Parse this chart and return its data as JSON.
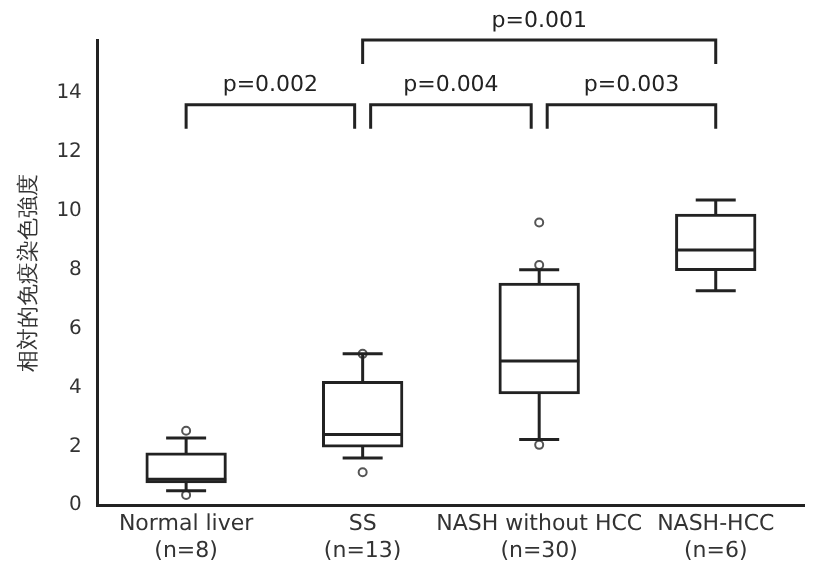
{
  "chart_data": {
    "type": "box",
    "ylabel": "相対的免疫染色強度",
    "categories": [
      "Normal liver\n(n=8)",
      "SS\n(n=13)",
      "NASH without HCC\n(n=30)",
      "NASH-HCC\n(n=6)"
    ],
    "color": "#222222",
    "boxes": [
      {
        "low": 0.49,
        "q1": 0.77,
        "median": 0.88,
        "q3": 1.77,
        "high": 2.28,
        "outliers": [
          2.53,
          0.35
        ]
      },
      {
        "low": 1.6,
        "q1": 1.98,
        "median": 2.4,
        "q3": 4.2,
        "high": 5.14,
        "outliers": [
          5.14,
          1.12
        ]
      },
      {
        "low": 2.23,
        "q1": 3.79,
        "median": 4.9,
        "q3": 7.53,
        "high": 8.0,
        "outliers": [
          9.6,
          8.16,
          2.05
        ]
      },
      {
        "low": 7.28,
        "q1": 7.98,
        "median": 8.67,
        "q3": 9.88,
        "high": 10.37
      }
    ],
    "ylim": [
      0,
      15.8
    ],
    "yticks": [
      0,
      2,
      4,
      6,
      8,
      10,
      12,
      14
    ],
    "grid": false,
    "legend": false,
    "marker": "circle",
    "annotations": [
      "p=0.002",
      "p=0.004",
      "p=0.003",
      "p=0.001"
    ]
  }
}
